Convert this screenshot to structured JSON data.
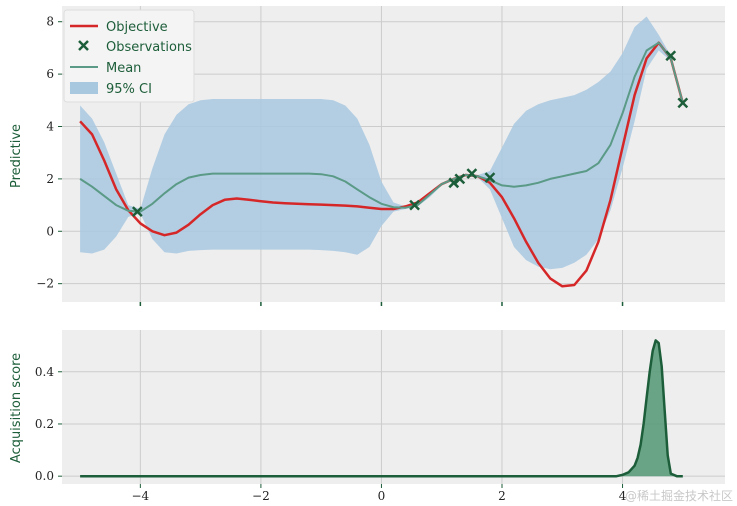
{
  "chart_data": [
    {
      "type": "line",
      "ylabel": "Predictive",
      "xlim": [
        -5.3,
        5.7
      ],
      "ylim": [
        -2.7,
        8.6
      ],
      "grid": true,
      "x_ticks": [
        -4,
        -2,
        0,
        2,
        4
      ],
      "y_ticks": [
        0,
        2,
        4,
        6,
        8
      ],
      "y_tick_labels": [
        "0",
        "2",
        "4",
        "6",
        "8"
      ],
      "x_tick_labels_shown": false,
      "legend": {
        "placement": "top-left",
        "entries": [
          "Objective",
          "Observations",
          "Mean",
          "95% CI"
        ]
      },
      "colors": {
        "objective": "#d62728",
        "observations": "#1d5e3a",
        "mean": "#5a9a86",
        "ci": "#a8c8e0"
      },
      "objective": {
        "x": [
          -5.0,
          -4.8,
          -4.6,
          -4.4,
          -4.2,
          -4.0,
          -3.8,
          -3.6,
          -3.4,
          -3.2,
          -3.0,
          -2.8,
          -2.6,
          -2.4,
          -2.2,
          -2.0,
          -1.8,
          -1.6,
          -1.4,
          -1.2,
          -1.0,
          -0.8,
          -0.6,
          -0.4,
          -0.2,
          0.0,
          0.2,
          0.4,
          0.6,
          0.8,
          1.0,
          1.2,
          1.4,
          1.6,
          1.8,
          2.0,
          2.2,
          2.4,
          2.6,
          2.8,
          3.0,
          3.2,
          3.4,
          3.6,
          3.8,
          4.0,
          4.2,
          4.4,
          4.6,
          4.8,
          5.0
        ],
        "y": [
          4.2,
          3.7,
          2.7,
          1.6,
          0.8,
          0.3,
          0.0,
          -0.15,
          -0.05,
          0.25,
          0.65,
          1.0,
          1.2,
          1.25,
          1.2,
          1.15,
          1.1,
          1.07,
          1.05,
          1.03,
          1.02,
          1.0,
          0.98,
          0.95,
          0.9,
          0.85,
          0.85,
          0.95,
          1.1,
          1.45,
          1.8,
          2.0,
          2.15,
          2.1,
          1.85,
          1.3,
          0.5,
          -0.4,
          -1.2,
          -1.8,
          -2.1,
          -2.05,
          -1.5,
          -0.4,
          1.2,
          3.2,
          5.2,
          6.6,
          7.2,
          6.6,
          4.9
        ]
      },
      "mean": {
        "x": [
          -5.0,
          -4.8,
          -4.6,
          -4.4,
          -4.2,
          -4.0,
          -3.8,
          -3.6,
          -3.4,
          -3.2,
          -3.0,
          -2.8,
          -2.6,
          -2.4,
          -2.2,
          -2.0,
          -1.8,
          -1.6,
          -1.4,
          -1.2,
          -1.0,
          -0.8,
          -0.6,
          -0.4,
          -0.2,
          0.0,
          0.2,
          0.4,
          0.6,
          0.8,
          1.0,
          1.2,
          1.4,
          1.6,
          1.8,
          2.0,
          2.2,
          2.4,
          2.6,
          2.8,
          3.0,
          3.2,
          3.4,
          3.6,
          3.8,
          4.0,
          4.2,
          4.4,
          4.6,
          4.8,
          5.0
        ],
        "y": [
          2.0,
          1.7,
          1.35,
          1.0,
          0.78,
          0.75,
          1.05,
          1.45,
          1.8,
          2.05,
          2.15,
          2.2,
          2.2,
          2.2,
          2.2,
          2.2,
          2.2,
          2.2,
          2.2,
          2.2,
          2.18,
          2.1,
          1.9,
          1.6,
          1.3,
          1.05,
          0.92,
          0.9,
          1.0,
          1.4,
          1.8,
          2.0,
          2.15,
          2.1,
          1.95,
          1.75,
          1.7,
          1.75,
          1.85,
          2.0,
          2.1,
          2.2,
          2.3,
          2.6,
          3.3,
          4.5,
          5.9,
          6.9,
          7.2,
          6.6,
          4.9
        ]
      },
      "ci_95": {
        "x": [
          -5.0,
          -4.8,
          -4.6,
          -4.4,
          -4.2,
          -4.0,
          -3.8,
          -3.6,
          -3.4,
          -3.2,
          -3.0,
          -2.8,
          -2.6,
          -2.4,
          -2.2,
          -2.0,
          -1.8,
          -1.6,
          -1.4,
          -1.2,
          -1.0,
          -0.8,
          -0.6,
          -0.4,
          -0.2,
          0.0,
          0.2,
          0.4,
          0.6,
          0.8,
          1.0,
          1.2,
          1.4,
          1.6,
          1.8,
          2.0,
          2.2,
          2.4,
          2.6,
          2.8,
          3.0,
          3.2,
          3.4,
          3.6,
          3.8,
          4.0,
          4.2,
          4.4,
          4.6,
          4.8,
          5.0
        ],
        "lower": [
          -0.8,
          -0.85,
          -0.7,
          -0.2,
          0.55,
          0.68,
          -0.3,
          -0.8,
          -0.85,
          -0.75,
          -0.72,
          -0.7,
          -0.7,
          -0.7,
          -0.7,
          -0.7,
          -0.7,
          -0.7,
          -0.7,
          -0.7,
          -0.72,
          -0.75,
          -0.8,
          -0.9,
          -0.6,
          0.2,
          0.75,
          0.85,
          0.95,
          1.3,
          1.75,
          1.95,
          2.1,
          2.05,
          1.6,
          0.5,
          -0.6,
          -1.1,
          -1.35,
          -1.45,
          -1.4,
          -1.2,
          -0.9,
          -0.3,
          0.8,
          2.4,
          4.2,
          6.2,
          6.9,
          6.5,
          4.8
        ],
        "upper": [
          4.8,
          4.3,
          3.4,
          2.2,
          1.0,
          0.85,
          2.4,
          3.7,
          4.45,
          4.85,
          5.0,
          5.05,
          5.05,
          5.05,
          5.05,
          5.05,
          5.05,
          5.05,
          5.05,
          5.05,
          5.05,
          5.0,
          4.8,
          4.3,
          3.3,
          1.9,
          1.1,
          0.95,
          1.05,
          1.5,
          1.85,
          2.05,
          2.2,
          2.15,
          2.3,
          3.2,
          4.1,
          4.6,
          4.85,
          5.0,
          5.1,
          5.2,
          5.4,
          5.7,
          6.1,
          6.8,
          7.8,
          8.2,
          7.5,
          6.7,
          5.0
        ]
      },
      "observations": {
        "x": [
          -4.05,
          0.55,
          1.2,
          1.3,
          1.5,
          1.8,
          4.8,
          5.0
        ],
        "y": [
          0.75,
          1.0,
          1.85,
          2.0,
          2.2,
          2.05,
          6.7,
          4.9
        ]
      }
    },
    {
      "type": "area",
      "ylabel": "Acquisition score",
      "xlim": [
        -5.3,
        5.7
      ],
      "ylim": [
        -0.03,
        0.56
      ],
      "grid": true,
      "x_ticks": [
        -4,
        -2,
        0,
        2,
        4
      ],
      "x_tick_labels": [
        "−4",
        "−2",
        "0",
        "2",
        "4"
      ],
      "y_ticks": [
        0.0,
        0.2,
        0.4
      ],
      "y_tick_labels": [
        "0.0",
        "0.2",
        "0.4"
      ],
      "colors": {
        "line": "#1d5e3a",
        "fill": "#5b9b7a"
      },
      "series": [
        {
          "x": [
            -5.0,
            -3.0,
            -1.0,
            1.0,
            3.0,
            3.8,
            3.9,
            4.0,
            4.1,
            4.2,
            4.25,
            4.3,
            4.35,
            4.4,
            4.45,
            4.5,
            4.55,
            4.6,
            4.65,
            4.7,
            4.75,
            4.8,
            4.9,
            5.0
          ],
          "values": [
            0.0,
            0.0,
            0.0,
            0.0,
            0.0,
            0.0,
            0.0,
            0.005,
            0.015,
            0.04,
            0.07,
            0.12,
            0.2,
            0.3,
            0.4,
            0.48,
            0.52,
            0.51,
            0.42,
            0.25,
            0.08,
            0.01,
            0.0,
            0.0
          ]
        }
      ]
    }
  ],
  "watermark": "@稀土掘金技术社区"
}
